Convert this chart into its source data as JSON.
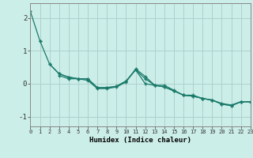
{
  "xlabel": "Humidex (Indice chaleur)",
  "background_color": "#cceee8",
  "grid_color": "#aacccc",
  "line_color": "#1a7a6a",
  "xlim": [
    0,
    23
  ],
  "ylim": [
    -1.3,
    2.45
  ],
  "yticks": [
    -1,
    0,
    1,
    2
  ],
  "xticks": [
    0,
    1,
    2,
    3,
    4,
    5,
    6,
    7,
    8,
    9,
    10,
    11,
    12,
    13,
    14,
    15,
    16,
    17,
    18,
    19,
    20,
    21,
    22,
    23
  ],
  "series": [
    {
      "x": [
        0,
        1
      ],
      "y": [
        2.2,
        1.3
      ]
    },
    {
      "x": [
        1,
        2,
        3,
        4,
        5,
        6,
        7,
        8,
        9,
        10,
        11,
        12,
        13,
        14,
        15,
        16,
        17,
        18,
        19,
        20,
        21,
        22,
        23
      ],
      "y": [
        1.3,
        0.6,
        0.3,
        0.2,
        0.15,
        0.15,
        -0.12,
        -0.12,
        -0.08,
        0.08,
        0.42,
        0.15,
        -0.05,
        -0.1,
        -0.22,
        -0.35,
        -0.38,
        -0.45,
        -0.5,
        -0.62,
        -0.67,
        -0.55,
        -0.55
      ]
    },
    {
      "x": [
        2,
        3,
        4,
        5,
        6,
        7,
        8,
        9,
        10,
        11,
        12,
        13,
        14,
        15,
        16,
        17,
        18,
        19,
        20,
        21,
        22,
        23
      ],
      "y": [
        0.6,
        0.3,
        0.2,
        0.15,
        0.15,
        -0.12,
        -0.12,
        -0.08,
        0.08,
        0.42,
        0.0,
        -0.05,
        -0.1,
        -0.22,
        -0.35,
        -0.38,
        -0.45,
        -0.5,
        -0.62,
        -0.67,
        -0.55,
        -0.55
      ]
    },
    {
      "x": [
        3,
        4,
        5,
        6,
        7,
        8,
        9,
        10,
        11,
        12,
        13,
        14,
        15,
        16,
        17,
        18,
        19,
        20,
        21,
        22,
        23
      ],
      "y": [
        0.25,
        0.15,
        0.15,
        0.1,
        -0.15,
        -0.15,
        -0.1,
        0.05,
        0.45,
        0.22,
        -0.05,
        -0.05,
        -0.2,
        -0.35,
        -0.35,
        -0.45,
        -0.5,
        -0.6,
        -0.65,
        -0.55,
        -0.55
      ]
    }
  ]
}
